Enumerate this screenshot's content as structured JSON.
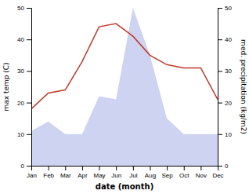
{
  "chart_data": {
    "type": "line",
    "x_label": "date (month)",
    "y_label": "max temp (C)",
    "y2_label": "med. precipitation (kg/m2)",
    "categories": [
      "Jan",
      "Feb",
      "Mar",
      "Apr",
      "May",
      "Jun",
      "Jul",
      "Aug",
      "Sep",
      "Oct",
      "Nov",
      "Dec"
    ],
    "series": [
      {
        "type": "area",
        "color": "#b8c0ea",
        "values": [
          11,
          14,
          10,
          10,
          22,
          21,
          50,
          35,
          15,
          10,
          10,
          10
        ]
      },
      {
        "type": "line",
        "color": "#c0392b",
        "values": [
          18,
          23,
          24,
          33,
          44,
          45,
          41,
          35,
          32,
          31,
          31,
          21
        ]
      }
    ],
    "ylim": [
      0,
      50
    ],
    "yticks": [
      0,
      10,
      20,
      30,
      40,
      50
    ],
    "y2lim": [
      0,
      50
    ],
    "y2ticks": [
      0,
      10,
      20,
      30,
      40,
      50
    ],
    "grid": false
  }
}
